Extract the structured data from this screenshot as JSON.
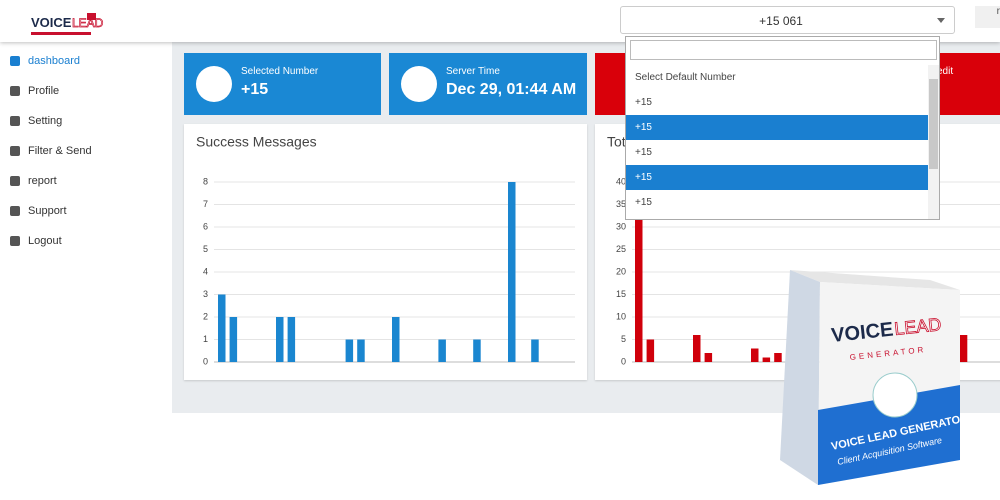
{
  "header": {
    "logo": "VOICE",
    "logo_accent": "LEAD",
    "selected_number": "+15 061",
    "user": "r"
  },
  "sidebar": {
    "items": [
      "dashboard",
      "Profile",
      "Setting",
      "Filter & Send",
      "report",
      "Support",
      "Logout"
    ],
    "active": 0
  },
  "cards": [
    {
      "label": "Selected Number",
      "value": "+15"
    },
    {
      "label": "Server Time",
      "value": "Dec 29, 01:44 AM"
    },
    {
      "label": "edit"
    }
  ],
  "dropdown": {
    "placeholder": "Select Default Number",
    "options": [
      "+15",
      "+15",
      "+15",
      "+15",
      "+15"
    ],
    "highlighted": [
      1,
      3
    ]
  },
  "product_box": {
    "brand": "VOICE",
    "brand_accent": "LEAD",
    "tagline": "GENERATOR",
    "title": "VOICE LEAD GENERATOR",
    "subtitle": "Client Acquisition Software"
  },
  "chart_data": [
    {
      "type": "bar",
      "title": "Success Messages",
      "color": "#1a86d0",
      "grid": true,
      "categories": [
        null,
        null,
        null,
        null,
        null,
        null,
        null,
        null,
        null,
        null,
        null,
        null,
        null,
        null,
        null,
        null,
        null,
        null,
        null,
        null,
        null,
        null,
        null,
        null,
        null,
        null,
        null,
        null,
        null,
        null
      ],
      "values": [
        3,
        2,
        0,
        0,
        0,
        2,
        2,
        0,
        0,
        0,
        0,
        1,
        1,
        0,
        0,
        2,
        0,
        0,
        0,
        1,
        0,
        0,
        1,
        0,
        0,
        8,
        0,
        1,
        0,
        0
      ],
      "ylim": [
        0,
        8
      ],
      "yticks": [
        0,
        1,
        2,
        3,
        4,
        5,
        6,
        7,
        8
      ]
    },
    {
      "type": "bar",
      "title": "Tot",
      "color": "#d0000b",
      "grid": true,
      "categories": [
        null,
        null,
        null,
        null,
        null,
        null,
        null,
        null,
        null,
        null,
        null,
        null,
        null,
        null,
        null,
        null,
        null,
        null,
        null,
        null,
        null,
        null,
        null,
        null,
        null,
        null,
        null,
        null,
        null,
        null
      ],
      "values": [
        40,
        5,
        0,
        0,
        0,
        6,
        2,
        0,
        0,
        0,
        3,
        1,
        2,
        0,
        0,
        0,
        0,
        0,
        0,
        0,
        0,
        0,
        0,
        0,
        0,
        0,
        0,
        0,
        6,
        0
      ],
      "ylim": [
        0,
        40
      ],
      "yticks": [
        0,
        5,
        10,
        15,
        20,
        25,
        30,
        35,
        40
      ]
    }
  ]
}
